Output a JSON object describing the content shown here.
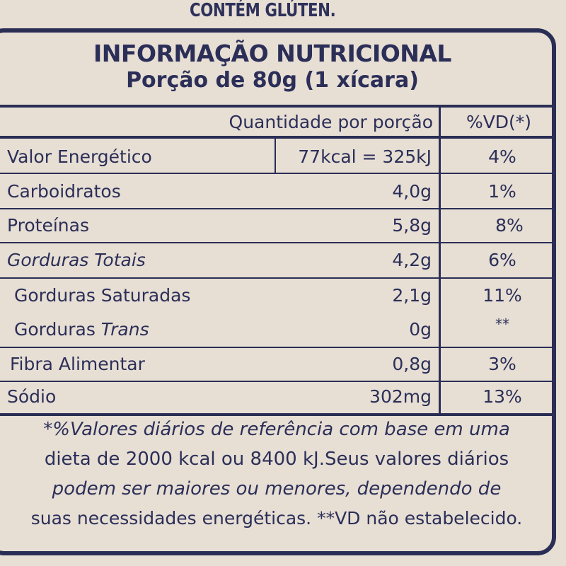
{
  "header": {
    "allergen": "CONTÉM GLÚTEN."
  },
  "label": {
    "title": "INFORMAÇÃO NUTRICIONAL",
    "serving": "Porção de 80g (1 xícara)",
    "col_quantity": "Quantidade por porção",
    "col_dv": "%VD(*)",
    "rows": [
      {
        "name": "Valor Energético",
        "name_suffix": "",
        "qty": "77kcal = 325kJ",
        "dv": "4%"
      },
      {
        "name": "Carboidratos",
        "name_suffix": "",
        "qty": "4,0g",
        "dv": "1%"
      },
      {
        "name": "Proteínas",
        "name_suffix": "",
        "qty": "5,8g",
        "dv": "8%"
      },
      {
        "name": "Gorduras Totais",
        "name_suffix": "",
        "qty": "4,2g",
        "dv": "6%"
      },
      {
        "name": "Gorduras Saturadas",
        "name_suffix": "",
        "qty": "2,1g",
        "dv": "11%"
      },
      {
        "name": "Gorduras ",
        "name_suffix": "Trans",
        "qty": "0g",
        "dv": "**"
      },
      {
        "name": "Fibra Alimentar",
        "name_suffix": "",
        "qty": "0,8g",
        "dv": "3%"
      },
      {
        "name": "Sódio",
        "name_suffix": "",
        "qty": "302mg",
        "dv": "13%"
      }
    ],
    "footnote": [
      "*%Valores diários de referência com base em uma",
      "dieta de 2000 kcal ou 8400 kJ.Seus valores diários",
      "podem ser maiores ou  menores, dependendo de",
      "suas necessidades energéticas. **VD não estabelecido."
    ]
  },
  "colors": {
    "ink": "#2b2f58",
    "background": "#e7ded4"
  }
}
